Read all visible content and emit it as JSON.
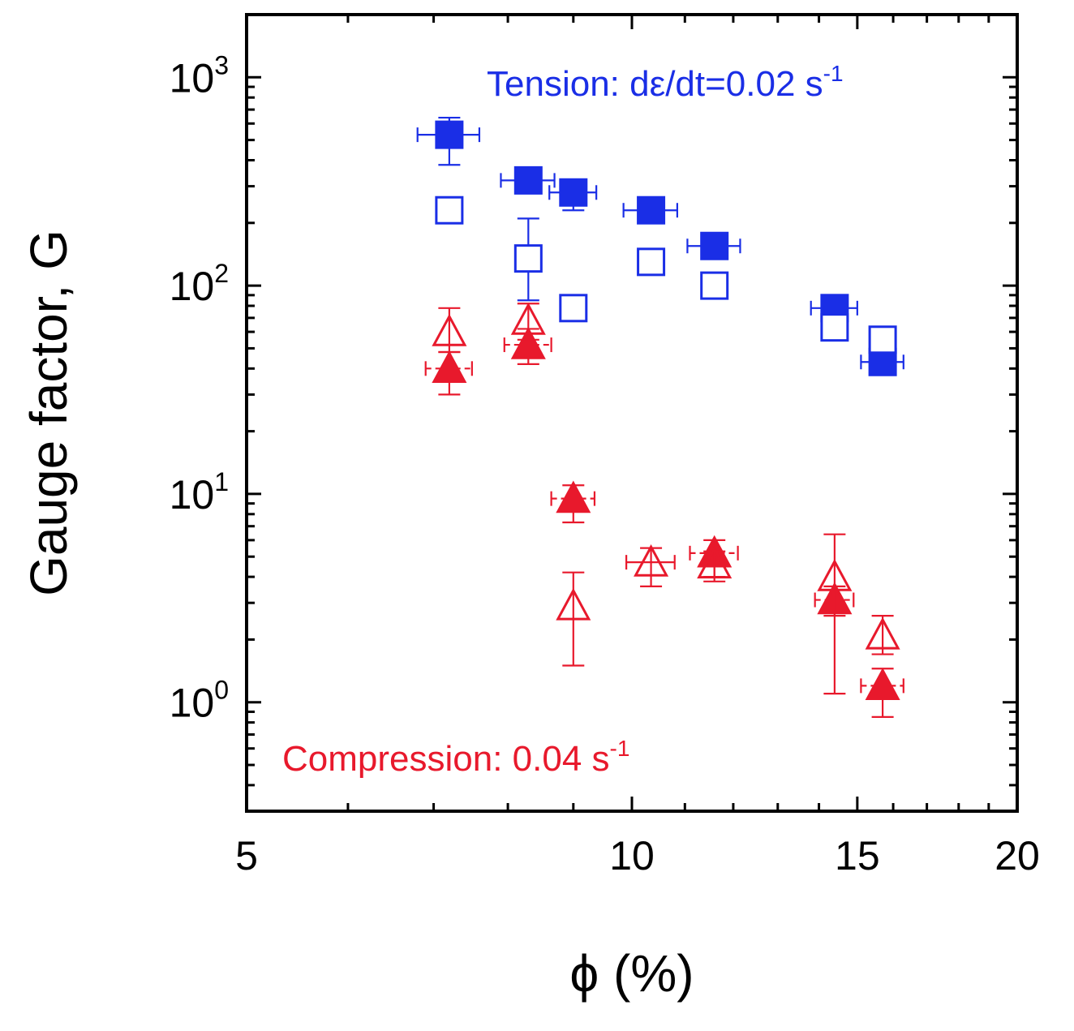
{
  "chart_data": {
    "type": "scatter",
    "title": "",
    "xlabel": "ϕ (%)",
    "ylabel": "Gauge factor, G",
    "x_scale": "log",
    "y_scale": "log",
    "xlim": [
      5,
      20
    ],
    "ylim": [
      0.3,
      2000
    ],
    "x_ticks": [
      {
        "value": 5,
        "label": "5"
      },
      {
        "value": 10,
        "label": "10"
      },
      {
        "value": 15,
        "label": "15"
      },
      {
        "value": 20,
        "label": "20"
      }
    ],
    "y_ticks": [
      {
        "value": 1,
        "base": "10",
        "exp": "0"
      },
      {
        "value": 10,
        "base": "10",
        "exp": "1"
      },
      {
        "value": 100,
        "base": "10",
        "exp": "2"
      },
      {
        "value": 1000,
        "base": "10",
        "exp": "3"
      }
    ],
    "annotations": [
      {
        "id": "tension",
        "text": "Tension: dε/dt=0.02 s",
        "sup": "-1",
        "color": "#1a2ee6",
        "position": "top-right"
      },
      {
        "id": "compression",
        "text": "Compression: 0.04 s",
        "sup": "-1",
        "color": "#e8192c",
        "position": "bottom-left"
      }
    ],
    "series": [
      {
        "name": "Tension filled squares",
        "marker": "square",
        "filled": true,
        "color": "#1a2ee6",
        "points": [
          {
            "x": 7.2,
            "y": 530,
            "xerr": 0.4,
            "ylo": 380,
            "yhi": 640
          },
          {
            "x": 8.3,
            "y": 320,
            "xerr": 0.4
          },
          {
            "x": 9.0,
            "y": 280,
            "xerr": 0.38,
            "ylo": 230,
            "yhi": 300
          },
          {
            "x": 10.35,
            "y": 230,
            "xerr": 0.5
          },
          {
            "x": 11.6,
            "y": 155,
            "xerr": 0.55
          },
          {
            "x": 14.4,
            "y": 78,
            "xerr": 0.6
          },
          {
            "x": 15.7,
            "y": 43,
            "xerr": 0.6
          }
        ]
      },
      {
        "name": "Tension open squares",
        "marker": "square",
        "filled": false,
        "color": "#1a2ee6",
        "points": [
          {
            "x": 7.2,
            "y": 230
          },
          {
            "x": 8.3,
            "y": 135,
            "ylo": 85,
            "yhi": 210
          },
          {
            "x": 9.0,
            "y": 78
          },
          {
            "x": 10.35,
            "y": 130
          },
          {
            "x": 11.6,
            "y": 100
          },
          {
            "x": 14.4,
            "y": 63
          },
          {
            "x": 15.7,
            "y": 55
          }
        ]
      },
      {
        "name": "Compression filled triangles",
        "marker": "triangle",
        "filled": true,
        "color": "#e8192c",
        "points": [
          {
            "x": 7.2,
            "y": 40,
            "xerr": 0.3,
            "ylo": 30,
            "yhi": 48
          },
          {
            "x": 8.3,
            "y": 52,
            "xerr": 0.35,
            "ylo": 42,
            "yhi": 62
          },
          {
            "x": 9.0,
            "y": 9.5,
            "xerr": 0.35,
            "ylo": 7.3,
            "yhi": 11
          },
          {
            "x": 11.6,
            "y": 5.2,
            "xerr": 0.5,
            "ylo": 4.0,
            "yhi": 6.0
          },
          {
            "x": 14.4,
            "y": 3.1,
            "xerr": 0.5,
            "ylo": 2.6,
            "yhi": 3.6
          },
          {
            "x": 15.7,
            "y": 1.2,
            "xerr": 0.6,
            "ylo": 0.85,
            "yhi": 1.45
          }
        ]
      },
      {
        "name": "Compression open triangles",
        "marker": "triangle",
        "filled": false,
        "color": "#e8192c",
        "points": [
          {
            "x": 7.2,
            "y": 60,
            "ylo": 48,
            "yhi": 78
          },
          {
            "x": 8.3,
            "y": 68,
            "ylo": 55,
            "yhi": 82
          },
          {
            "x": 9.0,
            "y": 2.9,
            "ylo": 1.5,
            "yhi": 4.2
          },
          {
            "x": 10.35,
            "y": 4.7,
            "xerr": 0.45,
            "ylo": 3.6,
            "yhi": 5.5
          },
          {
            "x": 11.6,
            "y": 4.6,
            "ylo": 3.8,
            "yhi": 5.3
          },
          {
            "x": 14.4,
            "y": 4.0,
            "ylo": 1.1,
            "yhi": 6.4
          },
          {
            "x": 15.7,
            "y": 2.1,
            "ylo": 1.7,
            "yhi": 2.6
          }
        ]
      }
    ]
  }
}
